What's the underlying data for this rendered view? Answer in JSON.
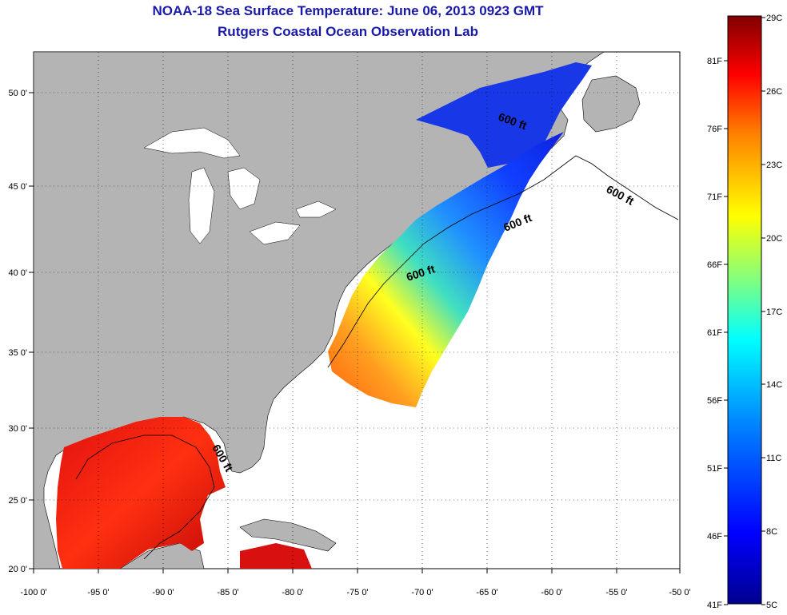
{
  "title": "NOAA-18 Sea Surface Temperature:  June 06, 2013 0923 GMT",
  "subtitle": "Rutgers Coastal Ocean Observation Lab",
  "colors": {
    "land": "#b4b4b4",
    "no_data": "#ffffff",
    "title": "#1a1aa8",
    "colormap": [
      "#00008f",
      "#0000ff",
      "#0080ff",
      "#00ffff",
      "#80ff80",
      "#ffff00",
      "#ff8000",
      "#ff0000",
      "#800000"
    ]
  },
  "map": {
    "lon_labels": [
      "-100 0'",
      "-95 0'",
      "-90 0'",
      "-85 0'",
      "-80 0'",
      "-75 0'",
      "-70 0'",
      "-65 0'",
      "-60 0'",
      "-55 0'",
      "-50 0'"
    ],
    "lat_labels": [
      "20 0'",
      "25 0'",
      "30 0'",
      "35 0'",
      "40 0'",
      "45 0'",
      "50 0'"
    ],
    "contour_labels": [
      "600 ft",
      "600 ft",
      "600 ft",
      "600 ft",
      "600 ft"
    ]
  },
  "colorbar": {
    "celsius": [
      "29C",
      "26C",
      "23C",
      "20C",
      "17C",
      "14C",
      "11C",
      "8C",
      "5C"
    ],
    "fahrenheit": [
      "81F",
      "76F",
      "71F",
      "66F",
      "61F",
      "56F",
      "51F",
      "46F",
      "41F"
    ]
  }
}
